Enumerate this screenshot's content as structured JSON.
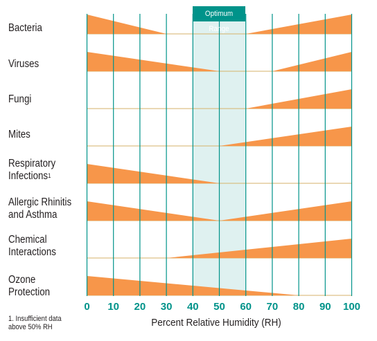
{
  "chart_data": {
    "type": "area",
    "xlabel": "Percent Relative Humidity (RH)",
    "xlim": [
      0,
      100
    ],
    "x_ticks": [
      0,
      10,
      20,
      30,
      40,
      50,
      60,
      70,
      80,
      90,
      100
    ],
    "tick_labels": [
      "0",
      "10",
      "20",
      "30",
      "40",
      "50",
      "60",
      "70",
      "80",
      "90",
      "100"
    ],
    "optimum_range": {
      "label": "Optimum Range",
      "from": 40,
      "to": 60
    },
    "series": [
      {
        "name": "Bacteria",
        "segments": [
          {
            "from": 0,
            "to": 30,
            "direction": "decreasing"
          },
          {
            "from": 60,
            "to": 100,
            "direction": "increasing"
          }
        ]
      },
      {
        "name": "Viruses",
        "segments": [
          {
            "from": 0,
            "to": 50,
            "direction": "decreasing"
          },
          {
            "from": 70,
            "to": 100,
            "direction": "increasing"
          }
        ]
      },
      {
        "name": "Fungi",
        "segments": [
          {
            "from": 60,
            "to": 100,
            "direction": "increasing"
          }
        ]
      },
      {
        "name": "Mites",
        "segments": [
          {
            "from": 50,
            "to": 100,
            "direction": "increasing"
          }
        ]
      },
      {
        "name": "Respiratory Infections",
        "footnote_ref": "1",
        "segments": [
          {
            "from": 0,
            "to": 50,
            "direction": "decreasing"
          }
        ]
      },
      {
        "name": "Allergic Rhinitis and Asthma",
        "segments": [
          {
            "from": 0,
            "to": 50,
            "direction": "decreasing"
          },
          {
            "from": 50,
            "to": 100,
            "direction": "increasing"
          }
        ]
      },
      {
        "name": "Chemical Interactions",
        "segments": [
          {
            "from": 30,
            "to": 100,
            "direction": "increasing"
          }
        ]
      },
      {
        "name": "Ozone Protection",
        "segments": [
          {
            "from": 0,
            "to": 80,
            "direction": "decreasing"
          }
        ]
      }
    ],
    "footnote": "1. Insufficient data above 50% RH",
    "colors": {
      "bar": "#f7964a",
      "baseline": "#d6b26a",
      "grid": "#00938a",
      "optimum_fill": "#dff1f0",
      "optimum_label_bg": "#00938a"
    }
  },
  "labels": {
    "row_lines": [
      [
        "Bacteria"
      ],
      [
        "Viruses"
      ],
      [
        "Fungi"
      ],
      [
        "Mites"
      ],
      [
        "Respiratory",
        "Infections"
      ],
      [
        "Allergic Rhinitis",
        "and Asthma"
      ],
      [
        "Chemical",
        "Interactions"
      ],
      [
        "Ozone",
        "Protection"
      ]
    ],
    "footnote_lines": [
      "1. Insufficient data",
      "above 50% RH"
    ]
  }
}
